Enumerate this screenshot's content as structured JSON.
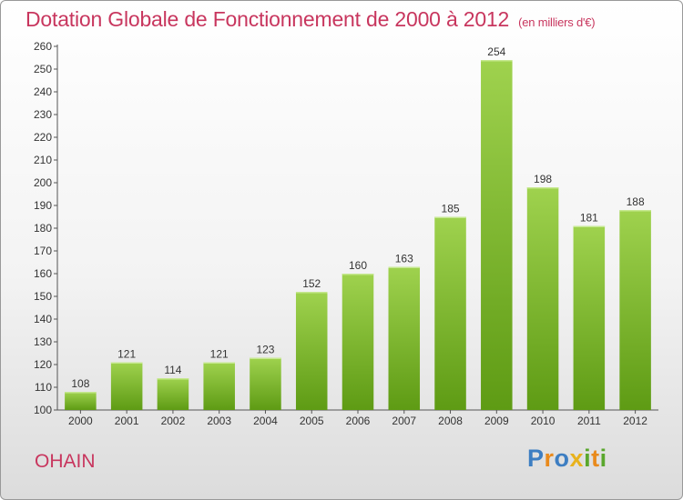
{
  "header": {
    "title": "Dotation Globale de Fonctionnement de 2000 à 2012",
    "subtitle": "(en milliers d'€)"
  },
  "footer": {
    "city": "OHAIN",
    "logo": [
      "P",
      "r",
      "o",
      "x",
      "i",
      "t",
      "i"
    ]
  },
  "colors": {
    "title": "#c8365e",
    "bar_top": "#9fd24e",
    "bar_bottom": "#5e9b14",
    "logo": [
      "#3d7ec2",
      "#e98a1c",
      "#3d7ec2",
      "#e8b21c",
      "#5aa72d",
      "#e98a1c",
      "#5aa72d"
    ]
  },
  "chart_data": {
    "type": "bar",
    "categories": [
      "2000",
      "2001",
      "2002",
      "2003",
      "2004",
      "2005",
      "2006",
      "2007",
      "2008",
      "2009",
      "2010",
      "2011",
      "2012"
    ],
    "values": [
      108,
      121,
      114,
      121,
      123,
      152,
      160,
      163,
      185,
      254,
      198,
      181,
      188
    ],
    "ylim": [
      100,
      260
    ],
    "yticks": [
      100,
      110,
      120,
      130,
      140,
      150,
      160,
      170,
      180,
      190,
      200,
      210,
      220,
      230,
      240,
      250,
      260
    ],
    "grid": false,
    "data_labels": true
  }
}
